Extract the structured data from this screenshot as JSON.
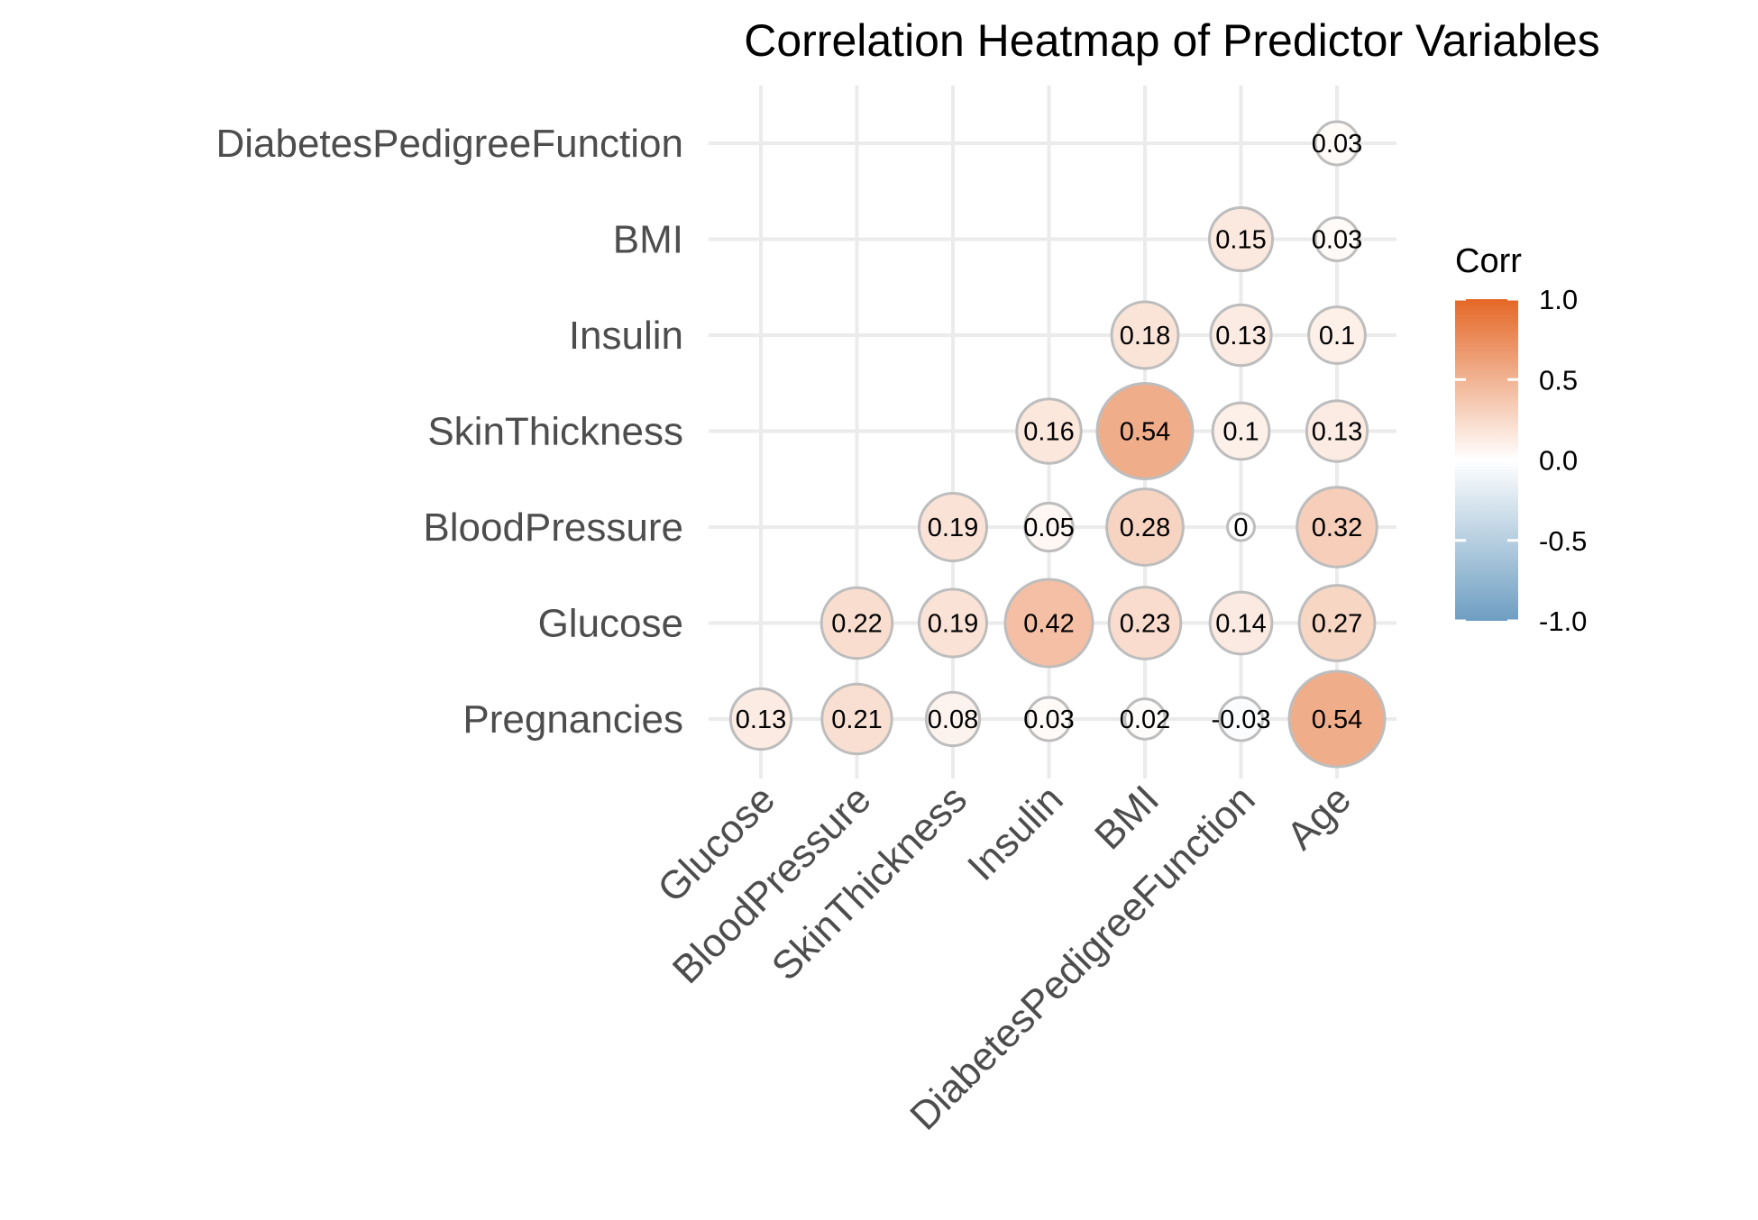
{
  "chart_data": {
    "type": "heatmap",
    "title": "Correlation Heatmap of Predictor Variables",
    "x_categories": [
      "Glucose",
      "BloodPressure",
      "SkinThickness",
      "Insulin",
      "BMI",
      "DiabetesPedigreeFunction",
      "Age"
    ],
    "y_categories": [
      "Pregnancies",
      "Glucose",
      "BloodPressure",
      "SkinThickness",
      "Insulin",
      "BMI",
      "DiabetesPedigreeFunction"
    ],
    "cells": [
      {
        "x": "Glucose",
        "y": "Pregnancies",
        "value": 0.13,
        "label": "0.13"
      },
      {
        "x": "BloodPressure",
        "y": "Pregnancies",
        "value": 0.21,
        "label": "0.21"
      },
      {
        "x": "SkinThickness",
        "y": "Pregnancies",
        "value": 0.08,
        "label": "0.08"
      },
      {
        "x": "Insulin",
        "y": "Pregnancies",
        "value": 0.03,
        "label": "0.03"
      },
      {
        "x": "BMI",
        "y": "Pregnancies",
        "value": 0.02,
        "label": "0.02"
      },
      {
        "x": "DiabetesPedigreeFunction",
        "y": "Pregnancies",
        "value": -0.03,
        "label": "-0.03"
      },
      {
        "x": "Age",
        "y": "Pregnancies",
        "value": 0.54,
        "label": "0.54"
      },
      {
        "x": "BloodPressure",
        "y": "Glucose",
        "value": 0.22,
        "label": "0.22"
      },
      {
        "x": "SkinThickness",
        "y": "Glucose",
        "value": 0.19,
        "label": "0.19"
      },
      {
        "x": "Insulin",
        "y": "Glucose",
        "value": 0.42,
        "label": "0.42"
      },
      {
        "x": "BMI",
        "y": "Glucose",
        "value": 0.23,
        "label": "0.23"
      },
      {
        "x": "DiabetesPedigreeFunction",
        "y": "Glucose",
        "value": 0.14,
        "label": "0.14"
      },
      {
        "x": "Age",
        "y": "Glucose",
        "value": 0.27,
        "label": "0.27"
      },
      {
        "x": "SkinThickness",
        "y": "BloodPressure",
        "value": 0.19,
        "label": "0.19"
      },
      {
        "x": "Insulin",
        "y": "BloodPressure",
        "value": 0.05,
        "label": "0.05"
      },
      {
        "x": "BMI",
        "y": "BloodPressure",
        "value": 0.28,
        "label": "0.28"
      },
      {
        "x": "DiabetesPedigreeFunction",
        "y": "BloodPressure",
        "value": 0.0,
        "label": "0"
      },
      {
        "x": "Age",
        "y": "BloodPressure",
        "value": 0.32,
        "label": "0.32"
      },
      {
        "x": "Insulin",
        "y": "SkinThickness",
        "value": 0.16,
        "label": "0.16"
      },
      {
        "x": "BMI",
        "y": "SkinThickness",
        "value": 0.54,
        "label": "0.54"
      },
      {
        "x": "DiabetesPedigreeFunction",
        "y": "SkinThickness",
        "value": 0.1,
        "label": "0.1"
      },
      {
        "x": "Age",
        "y": "SkinThickness",
        "value": 0.13,
        "label": "0.13"
      },
      {
        "x": "BMI",
        "y": "Insulin",
        "value": 0.18,
        "label": "0.18"
      },
      {
        "x": "DiabetesPedigreeFunction",
        "y": "Insulin",
        "value": 0.13,
        "label": "0.13"
      },
      {
        "x": "Age",
        "y": "Insulin",
        "value": 0.1,
        "label": "0.1"
      },
      {
        "x": "DiabetesPedigreeFunction",
        "y": "BMI",
        "value": 0.15,
        "label": "0.15"
      },
      {
        "x": "Age",
        "y": "BMI",
        "value": 0.03,
        "label": "0.03"
      },
      {
        "x": "Age",
        "y": "DiabetesPedigreeFunction",
        "value": 0.03,
        "label": "0.03"
      }
    ],
    "legend": {
      "title": "Corr",
      "placement": "right",
      "range": [
        -1.0,
        1.0
      ],
      "ticks": [
        {
          "value": 1.0,
          "label": "1.0"
        },
        {
          "value": 0.5,
          "label": "0.5"
        },
        {
          "value": 0.0,
          "label": "0.0"
        },
        {
          "value": -0.5,
          "label": "-0.5"
        },
        {
          "value": -1.0,
          "label": "-1.0"
        }
      ],
      "colors": {
        "low": "#6d9ec1",
        "mid": "#ffffff",
        "high": "#e46726"
      }
    },
    "grid": true,
    "marker": "circle sized by absolute correlation"
  }
}
